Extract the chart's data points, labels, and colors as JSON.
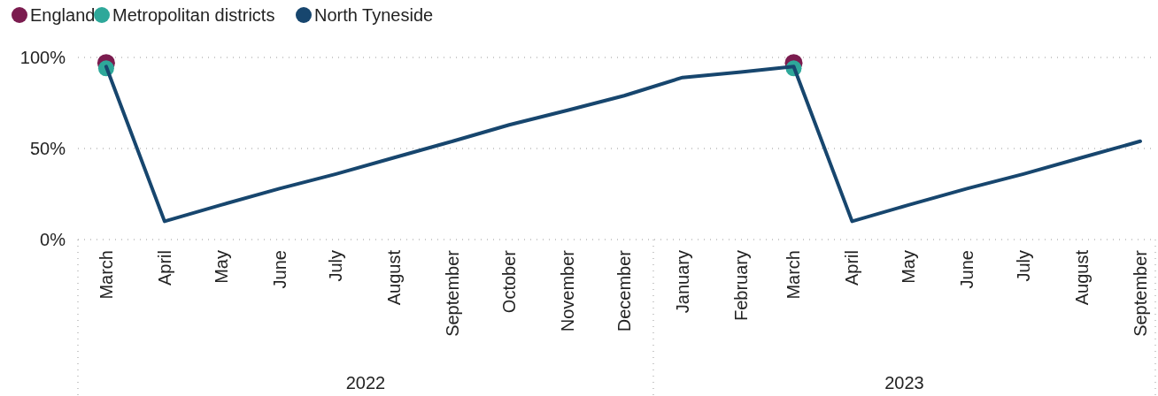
{
  "chart_data": {
    "type": "line",
    "x": [
      "2022-03",
      "2022-04",
      "2022-05",
      "2022-06",
      "2022-07",
      "2022-08",
      "2022-09",
      "2022-10",
      "2022-11",
      "2022-12",
      "2023-01",
      "2023-02",
      "2023-03",
      "2023-04",
      "2023-05",
      "2023-06",
      "2023-07",
      "2023-08",
      "2023-09"
    ],
    "series": [
      {
        "name": "England",
        "type": "scatter",
        "color": "#7b1c4f",
        "marker": "circle",
        "values": [
          97,
          null,
          null,
          null,
          null,
          null,
          null,
          null,
          null,
          null,
          null,
          null,
          97,
          null,
          null,
          null,
          null,
          null,
          null
        ]
      },
      {
        "name": "Metropolitan districts",
        "type": "scatter",
        "color": "#2ea89a",
        "marker": "circle",
        "values": [
          94,
          null,
          null,
          null,
          null,
          null,
          null,
          null,
          null,
          null,
          null,
          null,
          94,
          null,
          null,
          null,
          null,
          null,
          null
        ]
      },
      {
        "name": "North Tyneside",
        "color": "#17466e",
        "values": [
          95,
          10,
          19,
          28,
          36,
          45,
          54,
          63,
          71,
          79,
          89,
          92,
          95,
          10,
          19,
          28,
          36,
          45,
          54
        ]
      }
    ],
    "ylim": [
      0,
      100
    ],
    "yticks": [
      {
        "value": 0,
        "label": "0%"
      },
      {
        "value": 50,
        "label": "50%"
      },
      {
        "value": 100,
        "label": "100%"
      }
    ],
    "xticks": [
      {
        "value": "2022-03",
        "label": "March"
      },
      {
        "value": "2022-04",
        "label": "April"
      },
      {
        "value": "2022-05",
        "label": "May"
      },
      {
        "value": "2022-06",
        "label": "June"
      },
      {
        "value": "2022-07",
        "label": "July"
      },
      {
        "value": "2022-08",
        "label": "August"
      },
      {
        "value": "2022-09",
        "label": "September"
      },
      {
        "value": "2022-10",
        "label": "October"
      },
      {
        "value": "2022-11",
        "label": "November"
      },
      {
        "value": "2022-12",
        "label": "December"
      },
      {
        "value": "2023-01",
        "label": "January"
      },
      {
        "value": "2023-02",
        "label": "February"
      },
      {
        "value": "2023-03",
        "label": "March"
      },
      {
        "value": "2023-04",
        "label": "April"
      },
      {
        "value": "2023-05",
        "label": "May"
      },
      {
        "value": "2023-06",
        "label": "June"
      },
      {
        "value": "2023-07",
        "label": "July"
      },
      {
        "value": "2023-08",
        "label": "August"
      },
      {
        "value": "2023-09",
        "label": "September"
      }
    ],
    "xlim": [
      "2022-02-14",
      "2023-09-09"
    ],
    "annotations": [
      "2022",
      "2023"
    ],
    "grid": "y",
    "legend": "top left",
    "line_style": "solid"
  }
}
